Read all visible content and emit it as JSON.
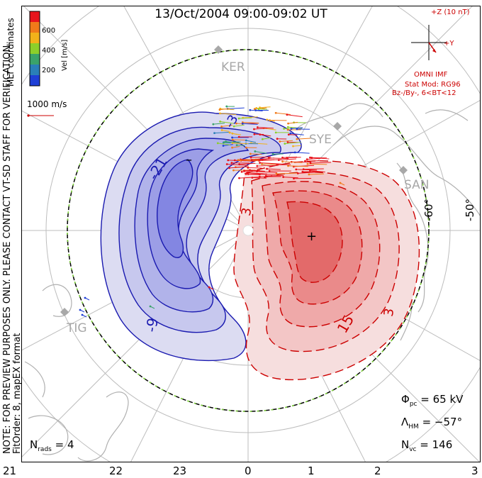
{
  "title": "13/Oct/2004 09:00-09:02 UT",
  "coord_label": "MLT coordinates",
  "note_line1": "NOTE: FOR PREVIEW PURPOSES ONLY. PLEASE CONTACT VT-SD STAFF FOR VERIFICATION.",
  "note_line2": "FitOrder: 8, mapEX format",
  "colorbar": {
    "label": "Vel [m/s]",
    "ticks": [
      "600",
      "400",
      "200"
    ],
    "colors": [
      "#e8141c",
      "#f07a1a",
      "#f2b21a",
      "#8ccf2a",
      "#3aa36a",
      "#2a7fb8",
      "#1f3fd6"
    ]
  },
  "scale_vector": {
    "label": "1000 m/s",
    "color": "#cc0000"
  },
  "imf": {
    "z_label": "+Z (10 nT)",
    "y_label": "+Y",
    "source": "OMNI IMF",
    "model_line1": "Stat Mod: RG96",
    "model_line2": "Bz-/By-, 6<BT<12",
    "color": "#cc0000"
  },
  "stations": [
    "KER",
    "SYE",
    "SAN",
    "TIG"
  ],
  "lat_labels": [
    "-60°",
    "-50°"
  ],
  "contour_labels": {
    "negative": [
      "-21",
      "-9",
      "-3"
    ],
    "positive": [
      "3",
      "15",
      "3"
    ],
    "min_marker": "–",
    "max_marker": "+"
  },
  "mlt_ticks": [
    "21",
    "22",
    "23",
    "0",
    "1",
    "2",
    "3"
  ],
  "stats": {
    "phi_pc": "Φ",
    "phi_sub": "pc",
    "phi_value": "= 65 kV",
    "lambda": "Λ",
    "lambda_sub": "HM",
    "lambda_value": "= −57°",
    "nvc": "N",
    "nvc_sub": "vc",
    "nvc_value": "= 146",
    "nrads": "N",
    "nrads_sub": "rads",
    "nrads_value": "= 4"
  },
  "potential": {
    "phi_pc_kV": 65,
    "lambda_hm_deg": -57,
    "n_vectors": 146,
    "n_radars": 4
  }
}
